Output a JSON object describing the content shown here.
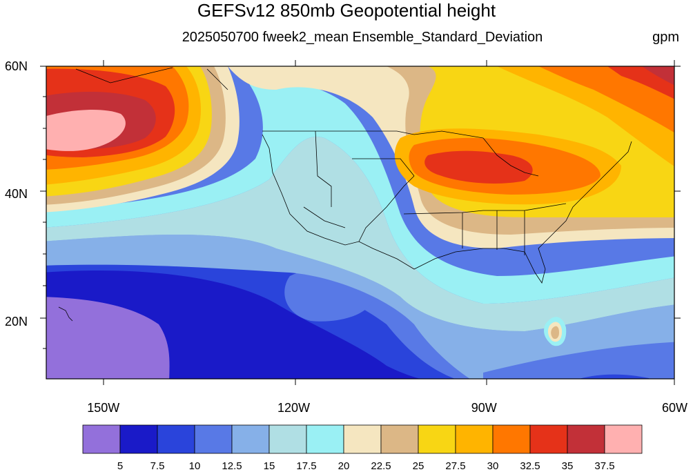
{
  "title": "GEFSv12 850mb Geopotential height",
  "subtitle": "2025050700 fweek2_mean Ensemble_Standard_Deviation",
  "units": "gpm",
  "lat_labels": [
    {
      "text": "60N",
      "lat": 60
    },
    {
      "text": "40N",
      "lat": 40
    },
    {
      "text": "20N",
      "lat": 20
    }
  ],
  "lon_labels": [
    {
      "text": "150W",
      "lon": -150
    },
    {
      "text": "120W",
      "lon": -120
    },
    {
      "text": "90W",
      "lon": -90
    },
    {
      "text": "60W",
      "lon": -60
    }
  ],
  "map": {
    "lon_range": [
      -159,
      -60
    ],
    "lat_range": [
      11,
      60
    ]
  },
  "colorbar": {
    "colors": [
      "#9370db",
      "#1a1ac8",
      "#2a44db",
      "#5879e6",
      "#86b0e8",
      "#b0dfe4",
      "#9af0f4",
      "#f5e6c0",
      "#dcb786",
      "#f8d614",
      "#ffb400",
      "#ff7700",
      "#e53219",
      "#c23038",
      "#ffb0b0"
    ],
    "labels": [
      "5",
      "7.5",
      "10",
      "12.5",
      "15",
      "17.5",
      "20",
      "22.5",
      "25",
      "27.5",
      "30",
      "32.5",
      "35",
      "37.5"
    ]
  }
}
